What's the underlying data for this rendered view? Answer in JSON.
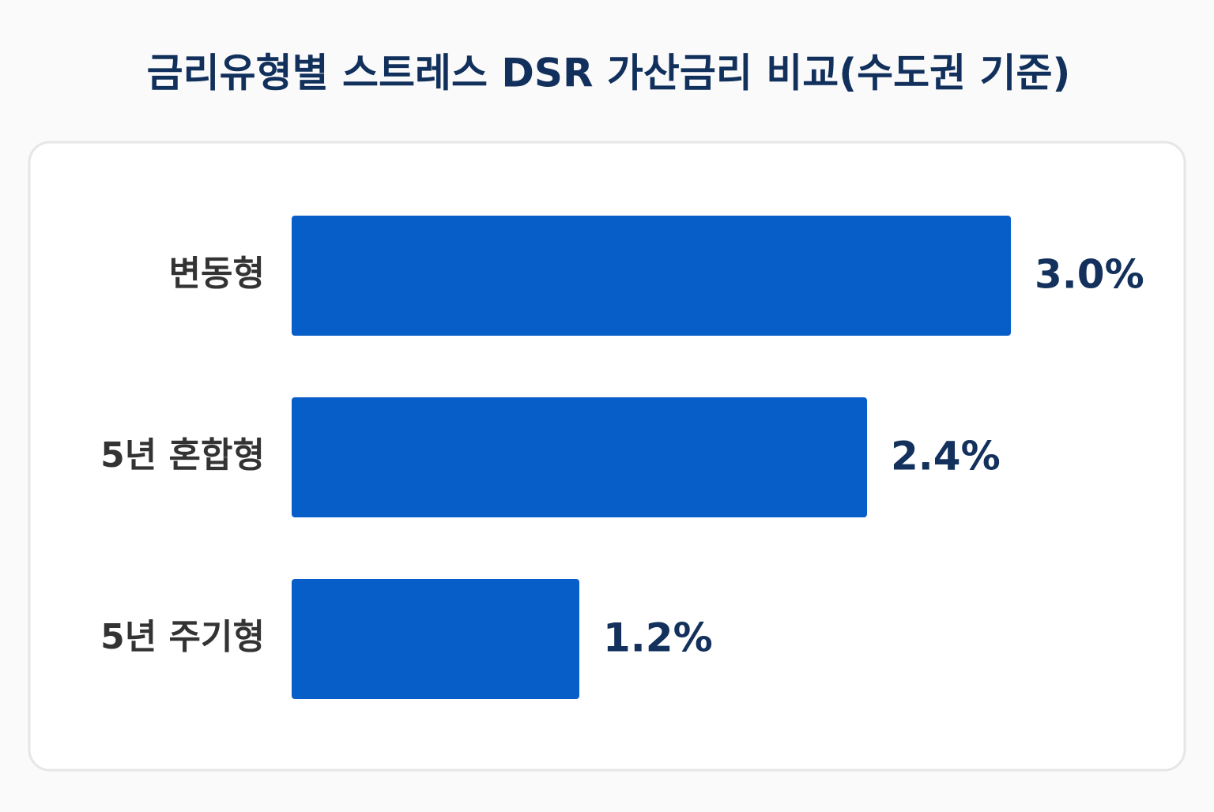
{
  "chart_data": {
    "type": "bar",
    "orientation": "horizontal",
    "title": "금리유형별 스트레스 DSR 가산금리 비교(수도권 기준)",
    "categories": [
      "변동형",
      "5년 혼합형",
      "5년 주기형"
    ],
    "values": [
      3.0,
      2.4,
      1.2
    ],
    "value_labels": [
      "3.0%",
      "2.4%",
      "1.2%"
    ],
    "color": "#075ec9"
  }
}
